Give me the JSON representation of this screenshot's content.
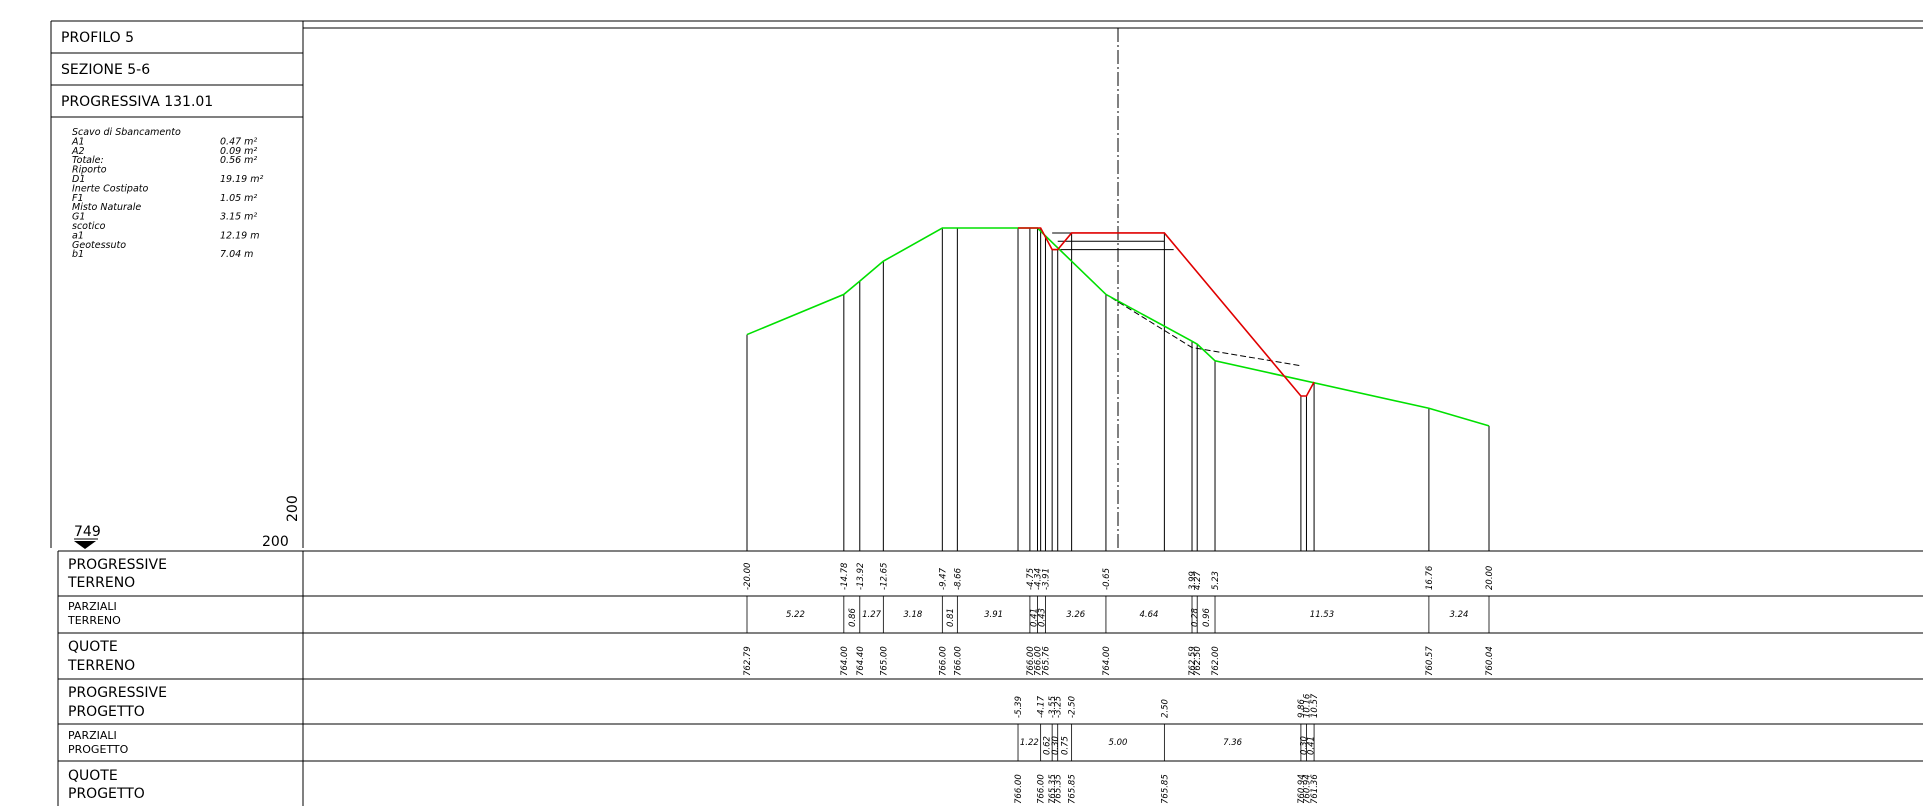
{
  "header": {
    "profilo": "PROFILO  5",
    "sezione": "SEZIONE  5-6",
    "progressiva": "PROGRESSIVA  131.01"
  },
  "summary": [
    {
      "label": "Scavo di Sbancamento",
      "value": ""
    },
    {
      "label": "A1",
      "value": "0.47 m²"
    },
    {
      "label": "A2",
      "value": "0.09 m²"
    },
    {
      "label": "Totale:",
      "value": "0.56 m²"
    },
    {
      "label": "Riporto",
      "value": ""
    },
    {
      "label": "D1",
      "value": "19.19 m²"
    },
    {
      "label": "Inerte Costipato",
      "value": ""
    },
    {
      "label": "F1",
      "value": "1.05 m²"
    },
    {
      "label": "Misto Naturale",
      "value": ""
    },
    {
      "label": "G1",
      "value": "3.15 m²"
    },
    {
      "label": "scotico",
      "value": ""
    },
    {
      "label": "a1",
      "value": "12.19 m"
    },
    {
      "label": "Geotessuto",
      "value": ""
    },
    {
      "label": "b1",
      "value": "7.04 m"
    }
  ],
  "datum": {
    "elevation": "749",
    "scale_h": "200",
    "scale_v": "200"
  },
  "colors": {
    "terrain": "#00e000",
    "project": "#e00000",
    "lines": "#000000"
  },
  "rows": {
    "progressive_terreno": [
      "PROGRESSIVE",
      "TERRENO"
    ],
    "parziali_terreno": [
      "PARZIALI",
      "TERRENO"
    ],
    "quote_terreno": [
      "QUOTE",
      "TERRENO"
    ],
    "progressive_progetto": [
      "PROGRESSIVE",
      "PROGETTO"
    ],
    "parziali_progetto": [
      "PARZIALI",
      "PROGETTO"
    ],
    "quote_progetto": [
      "QUOTE",
      "PROGETTO"
    ]
  },
  "terrain": {
    "progressive": [
      "-20.00",
      "-14.78",
      "-13.92",
      "-12.65",
      "-9.47",
      "-8.66",
      "-4.75",
      "-4.34",
      "-3.91",
      "-0.65",
      "3.99",
      "4.27",
      "5.23",
      "16.76",
      "20.00"
    ],
    "elevations": [
      "762.79",
      "764.00",
      "764.40",
      "765.00",
      "766.00",
      "766.00",
      "766.00",
      "766.00",
      "765.76",
      "764.00",
      "762.59",
      "762.50",
      "762.00",
      "760.57",
      "760.04"
    ],
    "partials": [
      "5.22",
      "0.86",
      "1.27",
      "3.18",
      "0.81",
      "3.91",
      "0.41",
      "0.43",
      "3.26",
      "4.64",
      "0.28",
      "0.96",
      "11.53",
      "3.24"
    ]
  },
  "project": {
    "progressive": [
      "-5.39",
      "-4.17",
      "-3.55",
      "-3.25",
      "-2.50",
      "2.50",
      "9.86",
      "10.16",
      "10.57"
    ],
    "elevations": [
      "766.00",
      "766.00",
      "765.35",
      "765.35",
      "765.85",
      "765.85",
      "760.94",
      "760.94",
      "761.36"
    ],
    "partials": [
      "1.22",
      "0.62",
      "0.30",
      "0.75",
      "5.00",
      "7.36",
      "0.30",
      "0.41"
    ]
  }
}
